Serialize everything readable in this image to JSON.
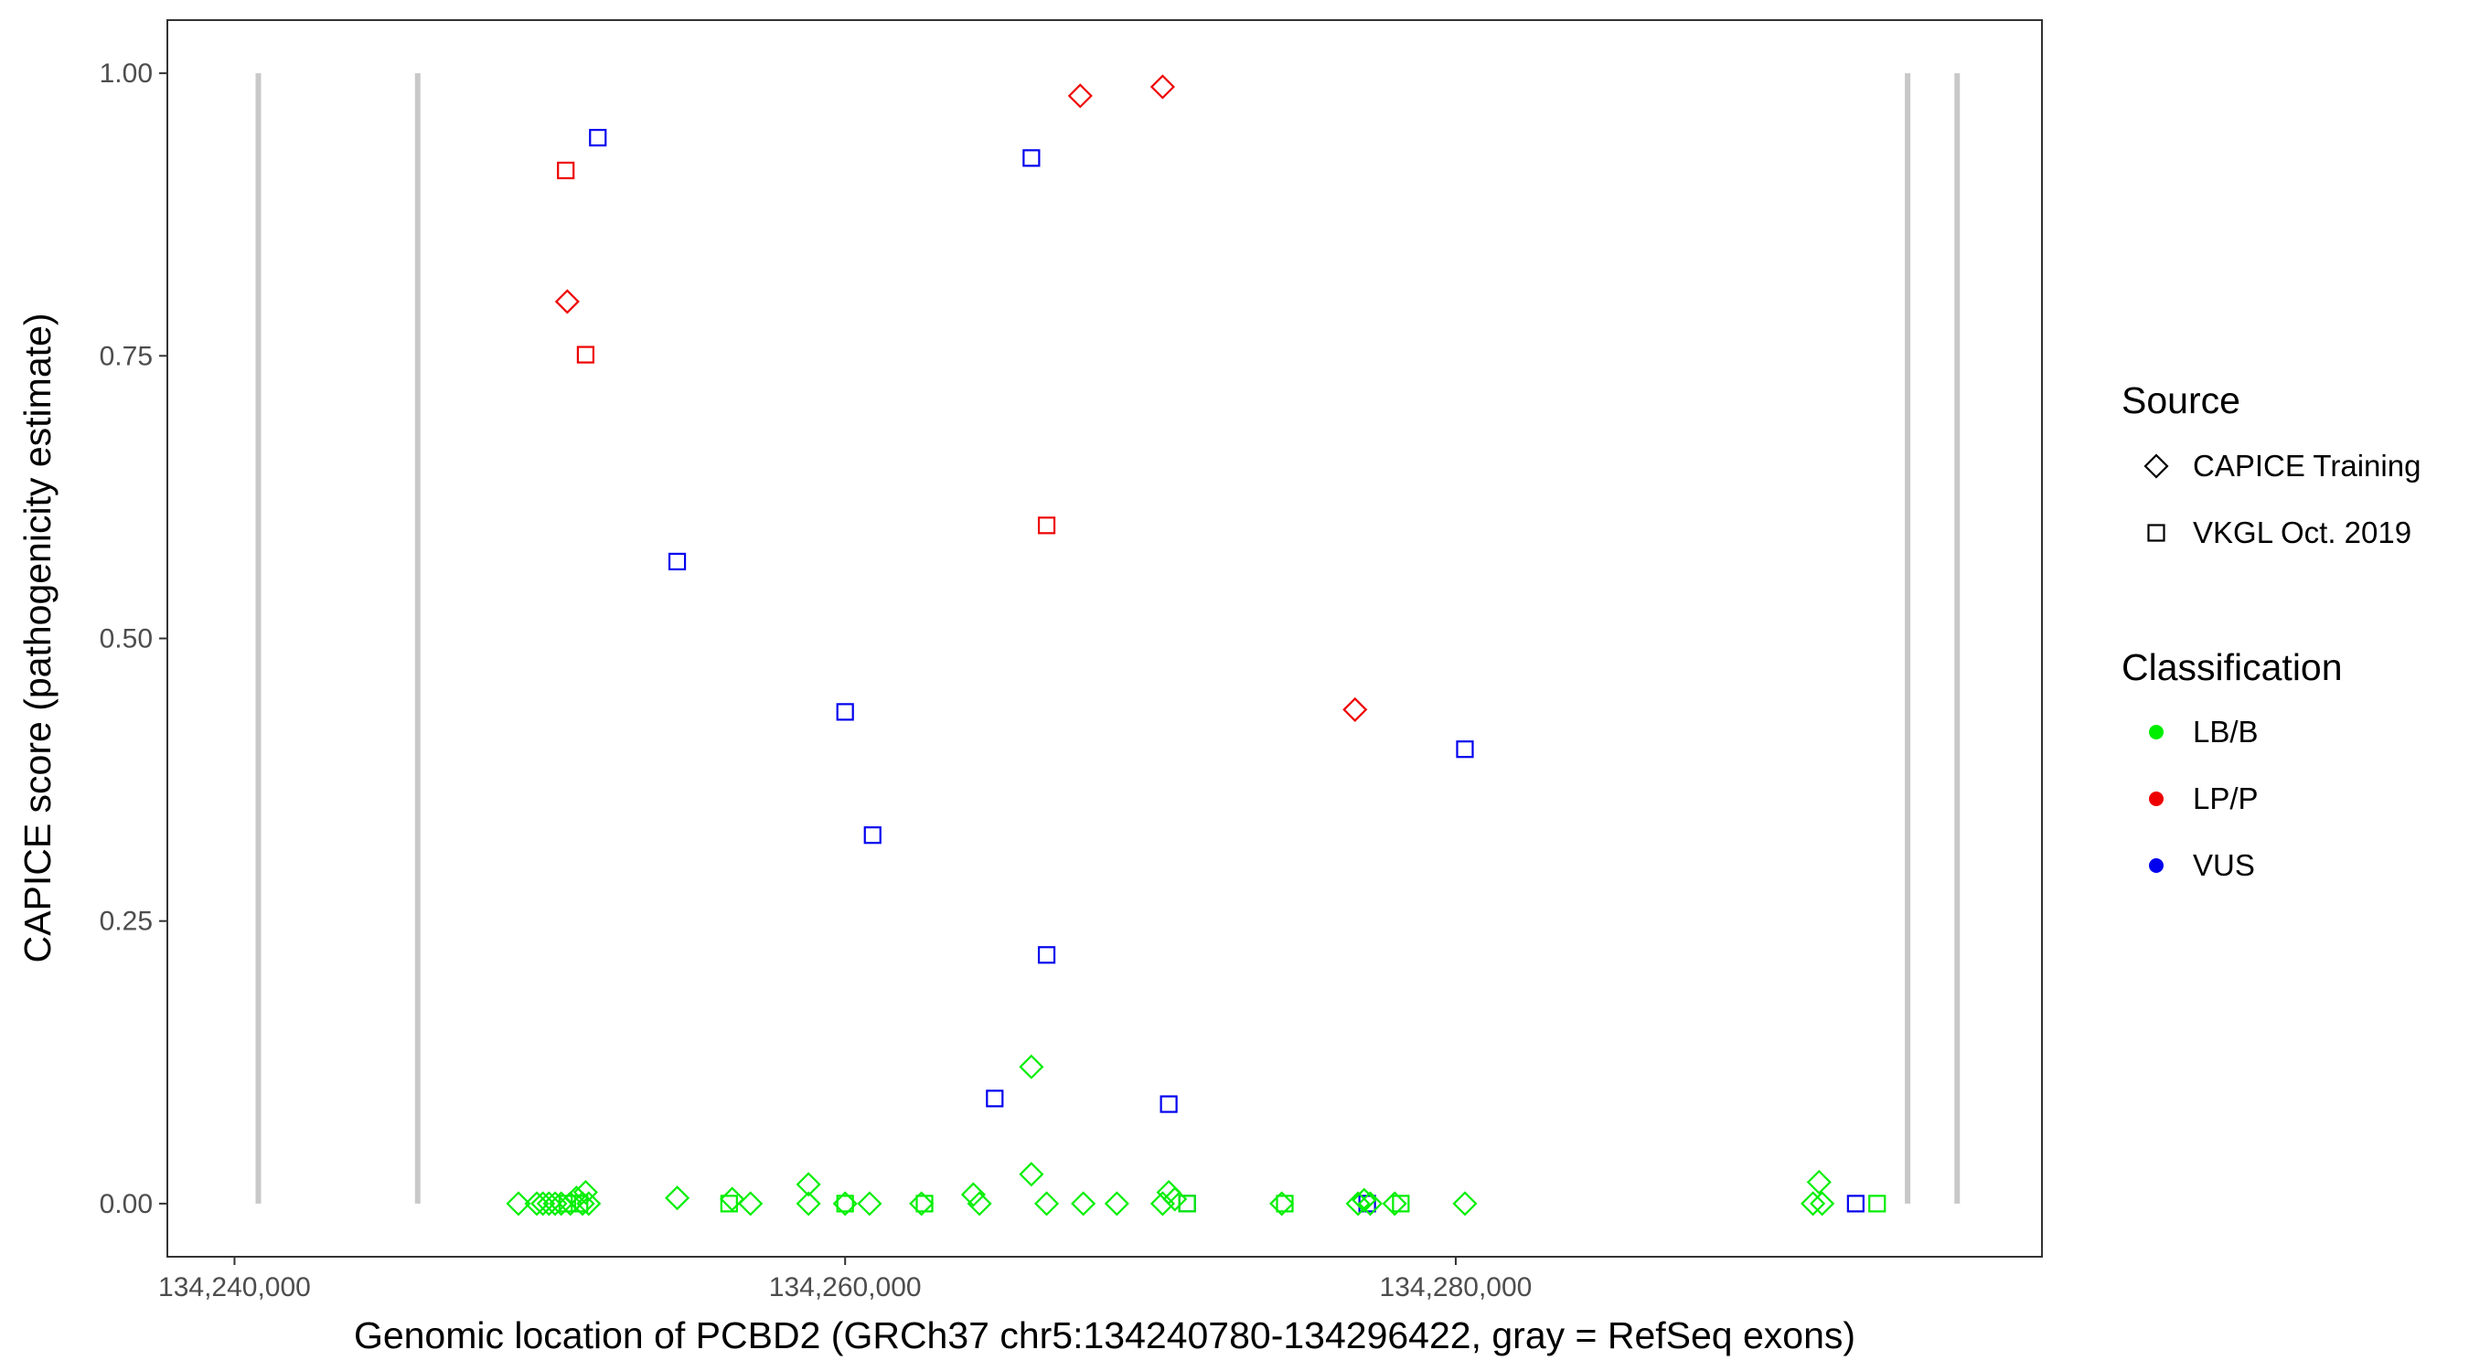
{
  "chart_data": {
    "type": "scatter",
    "xlabel": "Genomic location of PCBD2 (GRCh37 chr5:134240780-134296422, gray = RefSeq exons)",
    "ylabel": "CAPICE score (pathogenicity estimate)",
    "xlim": [
      134237800,
      134299200
    ],
    "ylim": [
      -0.047,
      1.047
    ],
    "x_ticks": [
      134240000,
      134260000,
      134280000
    ],
    "x_tick_labels": [
      "134,240,000",
      "134,260,000",
      "134,280,000"
    ],
    "y_ticks": [
      0,
      0.25,
      0.5,
      0.75,
      1.0
    ],
    "y_tick_labels": [
      "0.00",
      "0.25",
      "0.50",
      "0.75",
      "1.00"
    ],
    "grid": false,
    "legend_position": "right",
    "exons": [
      134240780,
      134246000,
      134294800,
      134296422
    ],
    "legends": [
      {
        "title": "Source",
        "items": [
          {
            "label": "CAPICE Training",
            "shape": "diamond"
          },
          {
            "label": "VKGL Oct. 2019",
            "shape": "square"
          }
        ]
      },
      {
        "title": "Classification",
        "items": [
          {
            "label": "LB/B",
            "color": "#00ee00"
          },
          {
            "label": "LP/P",
            "color": "#ee0000"
          },
          {
            "label": "VUS",
            "color": "#0000ee"
          }
        ]
      }
    ],
    "colors": {
      "LB/B": "#00ee00",
      "LP/P": "#ee0000",
      "VUS": "#0000ee",
      "exon": "#c8c8c8"
    },
    "points": [
      {
        "x": 134250850,
        "y": 0.914,
        "class": "LP/P",
        "source": "VKGL Oct. 2019"
      },
      {
        "x": 134250900,
        "y": 0.798,
        "class": "LP/P",
        "source": "CAPICE Training"
      },
      {
        "x": 134251500,
        "y": 0.751,
        "class": "LP/P",
        "source": "VKGL Oct. 2019"
      },
      {
        "x": 134251900,
        "y": 0.943,
        "class": "VUS",
        "source": "VKGL Oct. 2019"
      },
      {
        "x": 134254500,
        "y": 0.568,
        "class": "VUS",
        "source": "VKGL Oct. 2019"
      },
      {
        "x": 134260000,
        "y": 0.435,
        "class": "VUS",
        "source": "VKGL Oct. 2019"
      },
      {
        "x": 134260900,
        "y": 0.326,
        "class": "VUS",
        "source": "VKGL Oct. 2019"
      },
      {
        "x": 134264900,
        "y": 0.093,
        "class": "VUS",
        "source": "VKGL Oct. 2019"
      },
      {
        "x": 134266100,
        "y": 0.925,
        "class": "VUS",
        "source": "VKGL Oct. 2019"
      },
      {
        "x": 134266600,
        "y": 0.22,
        "class": "VUS",
        "source": "VKGL Oct. 2019"
      },
      {
        "x": 134266600,
        "y": 0.6,
        "class": "LP/P",
        "source": "VKGL Oct. 2019"
      },
      {
        "x": 134266100,
        "y": 0.121,
        "class": "LB/B",
        "source": "CAPICE Training"
      },
      {
        "x": 134266100,
        "y": 0.026,
        "class": "LB/B",
        "source": "CAPICE Training"
      },
      {
        "x": 134267700,
        "y": 0.98,
        "class": "LP/P",
        "source": "CAPICE Training"
      },
      {
        "x": 134270400,
        "y": 0.988,
        "class": "LP/P",
        "source": "CAPICE Training"
      },
      {
        "x": 134270600,
        "y": 0.088,
        "class": "VUS",
        "source": "VKGL Oct. 2019"
      },
      {
        "x": 134271200,
        "y": 0.0,
        "class": "VUS",
        "source": "VKGL Oct. 2019"
      },
      {
        "x": 134276700,
        "y": 0.437,
        "class": "LP/P",
        "source": "CAPICE Training"
      },
      {
        "x": 134277100,
        "y": 0.0,
        "class": "VUS",
        "source": "VKGL Oct. 2019"
      },
      {
        "x": 134280300,
        "y": 0.402,
        "class": "VUS",
        "source": "VKGL Oct. 2019"
      },
      {
        "x": 134293100,
        "y": 0.0,
        "class": "VUS",
        "source": "VKGL Oct. 2019"
      },
      {
        "x": 134249300,
        "y": 0.0,
        "class": "LB/B",
        "source": "CAPICE Training"
      },
      {
        "x": 134249900,
        "y": 0.0,
        "class": "LB/B",
        "source": "CAPICE Training"
      },
      {
        "x": 134250100,
        "y": 0.0,
        "class": "LB/B",
        "source": "CAPICE Training"
      },
      {
        "x": 134250300,
        "y": 0.0,
        "class": "LB/B",
        "source": "CAPICE Training"
      },
      {
        "x": 134250500,
        "y": 0.0,
        "class": "LB/B",
        "source": "CAPICE Training"
      },
      {
        "x": 134250700,
        "y": 0.0,
        "class": "LB/B",
        "source": "CAPICE Training"
      },
      {
        "x": 134251000,
        "y": 0.0,
        "class": "LB/B",
        "source": "CAPICE Training"
      },
      {
        "x": 134251200,
        "y": 0.005,
        "class": "LB/B",
        "source": "CAPICE Training"
      },
      {
        "x": 134251400,
        "y": 0.0,
        "class": "LB/B",
        "source": "CAPICE Training"
      },
      {
        "x": 134251500,
        "y": 0.01,
        "class": "LB/B",
        "source": "CAPICE Training"
      },
      {
        "x": 134251600,
        "y": 0.0,
        "class": "LB/B",
        "source": "CAPICE Training"
      },
      {
        "x": 134250900,
        "y": 0.0,
        "class": "LB/B",
        "source": "VKGL Oct. 2019"
      },
      {
        "x": 134251300,
        "y": 0.0,
        "class": "LB/B",
        "source": "VKGL Oct. 2019"
      },
      {
        "x": 134254500,
        "y": 0.005,
        "class": "LB/B",
        "source": "CAPICE Training"
      },
      {
        "x": 134256200,
        "y": 0.0,
        "class": "LB/B",
        "source": "VKGL Oct. 2019"
      },
      {
        "x": 134256300,
        "y": 0.004,
        "class": "LB/B",
        "source": "CAPICE Training"
      },
      {
        "x": 134256900,
        "y": 0.0,
        "class": "LB/B",
        "source": "CAPICE Training"
      },
      {
        "x": 134258800,
        "y": 0.017,
        "class": "LB/B",
        "source": "CAPICE Training"
      },
      {
        "x": 134258800,
        "y": 0.0,
        "class": "LB/B",
        "source": "CAPICE Training"
      },
      {
        "x": 134260000,
        "y": 0.0,
        "class": "LB/B",
        "source": "CAPICE Training"
      },
      {
        "x": 134260000,
        "y": 0.0,
        "class": "LB/B",
        "source": "VKGL Oct. 2019"
      },
      {
        "x": 134260800,
        "y": 0.0,
        "class": "LB/B",
        "source": "CAPICE Training"
      },
      {
        "x": 134262500,
        "y": 0.0,
        "class": "LB/B",
        "source": "CAPICE Training"
      },
      {
        "x": 134262600,
        "y": 0.0,
        "class": "LB/B",
        "source": "VKGL Oct. 2019"
      },
      {
        "x": 134264200,
        "y": 0.008,
        "class": "LB/B",
        "source": "CAPICE Training"
      },
      {
        "x": 134264400,
        "y": 0.0,
        "class": "LB/B",
        "source": "CAPICE Training"
      },
      {
        "x": 134266600,
        "y": 0.0,
        "class": "LB/B",
        "source": "CAPICE Training"
      },
      {
        "x": 134267800,
        "y": 0.0,
        "class": "LB/B",
        "source": "CAPICE Training"
      },
      {
        "x": 134268900,
        "y": 0.0,
        "class": "LB/B",
        "source": "CAPICE Training"
      },
      {
        "x": 134270400,
        "y": 0.0,
        "class": "LB/B",
        "source": "CAPICE Training"
      },
      {
        "x": 134270600,
        "y": 0.01,
        "class": "LB/B",
        "source": "CAPICE Training"
      },
      {
        "x": 134270800,
        "y": 0.004,
        "class": "LB/B",
        "source": "CAPICE Training"
      },
      {
        "x": 134271200,
        "y": 0.0,
        "class": "LB/B",
        "source": "VKGL Oct. 2019"
      },
      {
        "x": 134274300,
        "y": 0.0,
        "class": "LB/B",
        "source": "CAPICE Training"
      },
      {
        "x": 134274400,
        "y": 0.0,
        "class": "LB/B",
        "source": "VKGL Oct. 2019"
      },
      {
        "x": 134276800,
        "y": 0.0,
        "class": "LB/B",
        "source": "CAPICE Training"
      },
      {
        "x": 134277000,
        "y": 0.003,
        "class": "LB/B",
        "source": "CAPICE Training"
      },
      {
        "x": 134277200,
        "y": 0.0,
        "class": "LB/B",
        "source": "CAPICE Training"
      },
      {
        "x": 134278000,
        "y": 0.0,
        "class": "LB/B",
        "source": "CAPICE Training"
      },
      {
        "x": 134278200,
        "y": 0.0,
        "class": "LB/B",
        "source": "VKGL Oct. 2019"
      },
      {
        "x": 134280300,
        "y": 0.0,
        "class": "LB/B",
        "source": "CAPICE Training"
      },
      {
        "x": 134291700,
        "y": 0.0,
        "class": "LB/B",
        "source": "CAPICE Training"
      },
      {
        "x": 134291900,
        "y": 0.019,
        "class": "LB/B",
        "source": "CAPICE Training"
      },
      {
        "x": 134292000,
        "y": 0.0,
        "class": "LB/B",
        "source": "CAPICE Training"
      },
      {
        "x": 134293800,
        "y": 0.0,
        "class": "LB/B",
        "source": "VKGL Oct. 2019"
      }
    ]
  }
}
